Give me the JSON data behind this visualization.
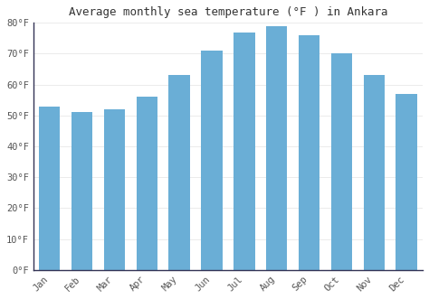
{
  "months": [
    "Jan",
    "Feb",
    "Mar",
    "Apr",
    "May",
    "Jun",
    "Jul",
    "Aug",
    "Sep",
    "Oct",
    "Nov",
    "Dec"
  ],
  "values": [
    53,
    51,
    52,
    56,
    63,
    71,
    77,
    79,
    76,
    70,
    63,
    57
  ],
  "bar_color": "#6aaed6",
  "title": "Average monthly sea temperature (°F ) in Ankara",
  "ylim": [
    0,
    80
  ],
  "yticks": [
    0,
    10,
    20,
    30,
    40,
    50,
    60,
    70,
    80
  ],
  "ytick_labels": [
    "0°F",
    "10°F",
    "20°F",
    "30°F",
    "40°F",
    "50°F",
    "60°F",
    "70°F",
    "80°F"
  ],
  "background_color": "#ffffff",
  "grid_color": "#e8e8e8",
  "title_fontsize": 9,
  "tick_fontsize": 7.5,
  "font_family": "monospace",
  "spine_color": "#333355"
}
